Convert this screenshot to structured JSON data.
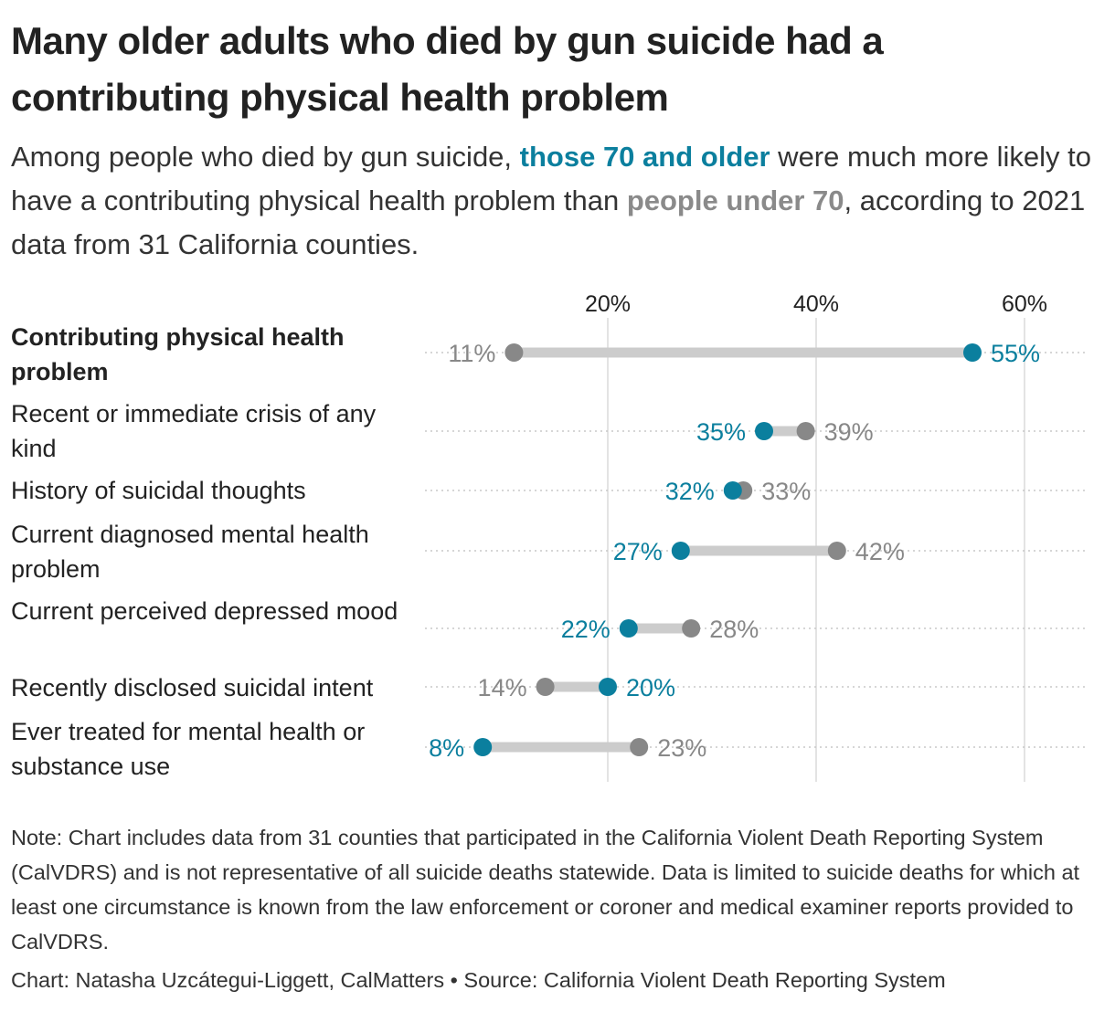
{
  "title": "Many older adults who died by gun suicide had a contributing physical health problem",
  "subtitle": {
    "part1": "Among people who died by gun suicide, ",
    "highlight_old": "those 70 and older",
    "part2": " were much more likely to have a contributing physical health problem than ",
    "highlight_young": "people under 70",
    "part3": ", according to 2021 data from 31 California counties."
  },
  "colors": {
    "age_70_plus": "#0b7f9e",
    "under_70": "#888888",
    "connector": "#cccccc"
  },
  "chart_data": {
    "type": "dumbbell",
    "x_ticks": [
      20,
      40,
      60
    ],
    "x_tick_labels": [
      "20%",
      "40%",
      "60%"
    ],
    "xlim": [
      0,
      66
    ],
    "grid": true,
    "categories": [
      "Contributing physical health problem",
      "Recent or immediate crisis of any kind",
      "History of suicidal thoughts",
      "Current diagnosed mental health problem",
      "Current perceived depressed mood",
      "Recently disclosed suicidal intent",
      "Ever treated for mental health or substance use"
    ],
    "series": [
      {
        "name": "those 70 and older",
        "values": [
          55,
          35,
          32,
          27,
          22,
          20,
          8
        ],
        "labels": [
          "55%",
          "35%",
          "32%",
          "27%",
          "22%",
          "20%",
          "8%"
        ]
      },
      {
        "name": "people under 70",
        "values": [
          11,
          39,
          33,
          42,
          28,
          14,
          23
        ],
        "labels": [
          "11%",
          "39%",
          "33%",
          "42%",
          "28%",
          "14%",
          "23%"
        ]
      }
    ]
  },
  "note": "Note: Chart includes data from 31 counties that participated in the California Violent Death Reporting System (CalVDRS) and is not representative of all suicide deaths statewide. Data is limited to suicide deaths for which at least one circumstance is known from the law enforcement or coroner and medical examiner reports provided to CalVDRS.",
  "credit": "Chart: Natasha Uzcátegui-Liggett, CalMatters • Source: California Violent Death Reporting System"
}
